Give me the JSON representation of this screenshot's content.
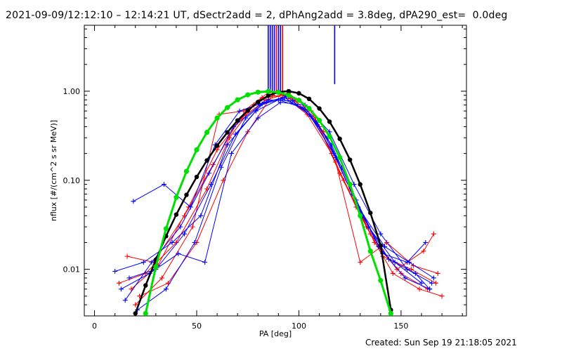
{
  "header": {
    "title": "2021-09-09/12:12:10 – 12:14:21 UT, dSectr2add = 2, dPhAng2add = 3.8deg, dPA290_est=  0.0deg"
  },
  "footer": {
    "created": "Created: Sun Sep 19 21:18:05 2021"
  },
  "chart_data": {
    "type": "line",
    "title": "2021-09-09/12:12:10 – 12:14:21 UT, dSectr2add = 2, dPhAng2add = 3.8deg, dPA290_est=  0.0deg",
    "xlabel": "PA [deg]",
    "ylabel": "nflux [#/(cm^2 s sr MeV)]",
    "xlim": [
      -5,
      182
    ],
    "ylim": [
      0.003,
      5.5
    ],
    "yscale": "log",
    "x_ticks": [
      "0",
      "50",
      "100",
      "150"
    ],
    "y_ticks": [
      "0.01",
      "0.10",
      "1.00"
    ],
    "x_tick_values": [
      0,
      50,
      100,
      150
    ],
    "y_tick_values": [
      0.01,
      0.1,
      1.0
    ],
    "series": [
      {
        "name": "",
        "color": "#ff0000",
        "style": "line+plus",
        "traces": [
          {
            "x": [
              12,
              25,
              40,
              55,
              66,
              78,
              88,
              100,
              112,
              125,
              137,
              150,
              163
            ],
            "y": [
              0.007,
              0.009,
              0.02,
              0.08,
              0.3,
              0.7,
              0.95,
              0.8,
              0.35,
              0.08,
              0.02,
              0.009,
              0.006
            ]
          },
          {
            "x": [
              16,
              29,
              44,
              58,
              70,
              82,
              92,
              104,
              116,
              128,
              141,
              155,
              167
            ],
            "y": [
              0.014,
              0.012,
              0.04,
              0.15,
              0.45,
              0.85,
              0.9,
              0.55,
              0.2,
              0.05,
              0.014,
              0.01,
              0.007
            ]
          },
          {
            "x": [
              20,
              33,
              48,
              61,
              73,
              86,
              96,
              108,
              120,
              133,
              146,
              159,
              170
            ],
            "y": [
              0.004,
              0.008,
              0.03,
              0.55,
              0.6,
              1.0,
              0.85,
              0.5,
              0.12,
              0.03,
              0.009,
              0.006,
              0.005
            ]
          },
          {
            "x": [
              18,
              31,
              46,
              60,
              72,
              84,
              95,
              106,
              118,
              130,
              143,
              156,
              168
            ],
            "y": [
              0.006,
              0.011,
              0.05,
              0.22,
              0.5,
              0.8,
              0.95,
              0.6,
              0.16,
              0.012,
              0.02,
              0.011,
              0.009
            ]
          },
          {
            "x": [
              22,
              36,
              50,
              63,
              75,
              87,
              98,
              110,
              122,
              135,
              148,
              161,
              166
            ],
            "y": [
              0.005,
              0.007,
              0.02,
              0.1,
              0.35,
              0.9,
              0.8,
              0.4,
              0.1,
              0.025,
              0.01,
              0.016,
              0.025
            ]
          }
        ]
      },
      {
        "name": "",
        "color": "#0000ff",
        "style": "line+plus",
        "traces": [
          {
            "x": [
              19,
              34,
              47,
              59,
              71,
              83,
              93,
              105,
              117,
              129,
              142,
              154,
              166
            ],
            "y": [
              0.058,
              0.09,
              0.05,
              0.25,
              0.6,
              0.75,
              0.85,
              0.55,
              0.2,
              0.05,
              0.018,
              0.012,
              0.008
            ]
          },
          {
            "x": [
              10,
              24,
              38,
              52,
              65,
              79,
              90,
              102,
              114,
              126,
              139,
              152,
              164
            ],
            "y": [
              0.0095,
              0.012,
              0.02,
              0.04,
              0.25,
              0.6,
              0.8,
              0.65,
              0.3,
              0.07,
              0.018,
              0.008,
              0.006
            ]
          },
          {
            "x": [
              13,
              27,
              41,
              54,
              67,
              80,
              91,
              103,
              115,
              127,
              140,
              153,
              165
            ],
            "y": [
              0.006,
              0.009,
              0.015,
              0.012,
              0.2,
              0.5,
              0.75,
              0.7,
              0.35,
              0.09,
              0.025,
              0.01,
              0.007
            ]
          },
          {
            "x": [
              15,
              28,
              42,
              56,
              68,
              81,
              92,
              104,
              116,
              128,
              141,
              153,
              162
            ],
            "y": [
              0.0045,
              0.012,
              0.03,
              0.12,
              0.4,
              0.7,
              0.82,
              0.62,
              0.25,
              0.06,
              0.015,
              0.012,
              0.02
            ]
          },
          {
            "x": [
              17,
              30,
              44,
              57,
              69,
              82,
              94,
              106,
              118,
              131,
              144,
              157,
              164
            ],
            "y": [
              0.008,
              0.01,
              0.025,
              0.09,
              0.33,
              0.72,
              0.88,
              0.52,
              0.18,
              0.04,
              0.013,
              0.009,
              0.006
            ]
          },
          {
            "x": [
              21,
              35,
              49,
              62,
              74,
              85,
              97,
              109,
              121,
              134,
              147,
              160
            ],
            "y": [
              0.0035,
              0.006,
              0.02,
              0.14,
              0.5,
              0.8,
              0.78,
              0.45,
              0.14,
              0.03,
              0.012,
              0.007
            ]
          }
        ]
      },
      {
        "name": "",
        "color": "#000000",
        "style": "line+dot",
        "x": [
          20,
          25,
          30,
          35,
          40,
          45,
          50,
          55,
          60,
          65,
          70,
          75,
          80,
          85,
          90,
          95,
          100,
          105,
          110,
          115,
          120,
          125,
          130,
          135,
          140,
          145
        ],
        "y": [
          0.0032,
          0.0066,
          0.0128,
          0.0236,
          0.0412,
          0.0686,
          0.109,
          0.167,
          0.245,
          0.345,
          0.47,
          0.608,
          0.757,
          0.89,
          0.98,
          1.0,
          0.948,
          0.82,
          0.64,
          0.455,
          0.292,
          0.17,
          0.09,
          0.043,
          0.0185,
          0.0035
        ]
      },
      {
        "name": "",
        "color": "#00e000",
        "style": "line+dot",
        "x": [
          25,
          30,
          35,
          40,
          45,
          50,
          55,
          60,
          65,
          70,
          75,
          80,
          85,
          90,
          95,
          100,
          105,
          110,
          115,
          120,
          125,
          130,
          135,
          140,
          145
        ],
        "y": [
          0.0032,
          0.0107,
          0.0286,
          0.0642,
          0.126,
          0.22,
          0.345,
          0.5,
          0.655,
          0.8,
          0.91,
          0.975,
          0.995,
          0.97,
          0.9,
          0.79,
          0.64,
          0.47,
          0.31,
          0.18,
          0.09,
          0.04,
          0.016,
          0.0075,
          0.0032
        ]
      }
    ],
    "vertical_markers": [
      {
        "color": "#0000ff",
        "x": [
          85,
          86,
          87,
          88,
          90,
          91,
          117.5
        ]
      },
      {
        "color": "#ff0000",
        "x": [
          89,
          92
        ]
      }
    ]
  }
}
